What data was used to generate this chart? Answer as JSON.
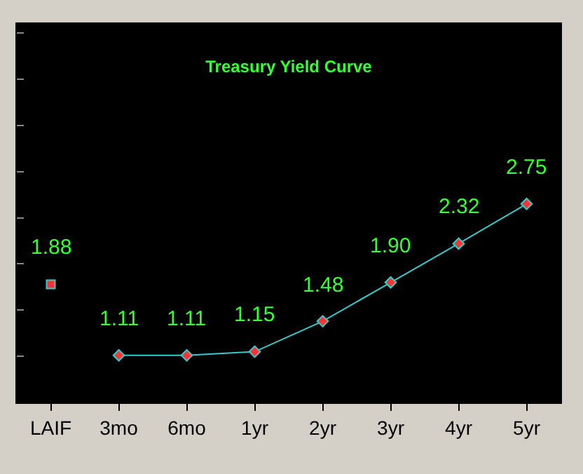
{
  "chart_data": {
    "type": "line",
    "title": "Treasury Yield Curve",
    "categories": [
      "LAIF",
      "3mo",
      "6mo",
      "1yr",
      "2yr",
      "3yr",
      "4yr",
      "5yr"
    ],
    "series": [
      {
        "type": "scatter",
        "marker": "square",
        "color": "#33cccc",
        "values": [
          1.88,
          null,
          null,
          null,
          null,
          null,
          null,
          null
        ],
        "value_labels": [
          "1.88",
          null,
          null,
          null,
          null,
          null,
          null,
          null
        ]
      },
      {
        "marker": "diamond",
        "color": "#33cccc",
        "values": [
          null,
          1.11,
          1.11,
          1.15,
          1.48,
          1.9,
          2.32,
          2.75
        ],
        "value_labels": [
          null,
          "1.11",
          "1.11",
          "1.15",
          "1.48",
          "1.90",
          "2.32",
          "2.75"
        ]
      }
    ],
    "ylim": [
      0.6,
      4.7
    ],
    "yticks": [
      {
        "value": 1.1,
        "label": null
      },
      {
        "value": 1.6,
        "label": null
      },
      {
        "value": 2.1,
        "label": null
      },
      {
        "value": 2.6,
        "label": null
      },
      {
        "value": 3.1,
        "label": null
      },
      {
        "value": 3.6,
        "label": null
      },
      {
        "value": 4.1,
        "label": null
      },
      {
        "value": 4.6,
        "label": null
      }
    ],
    "tick_labels": "x",
    "grid": false
  }
}
